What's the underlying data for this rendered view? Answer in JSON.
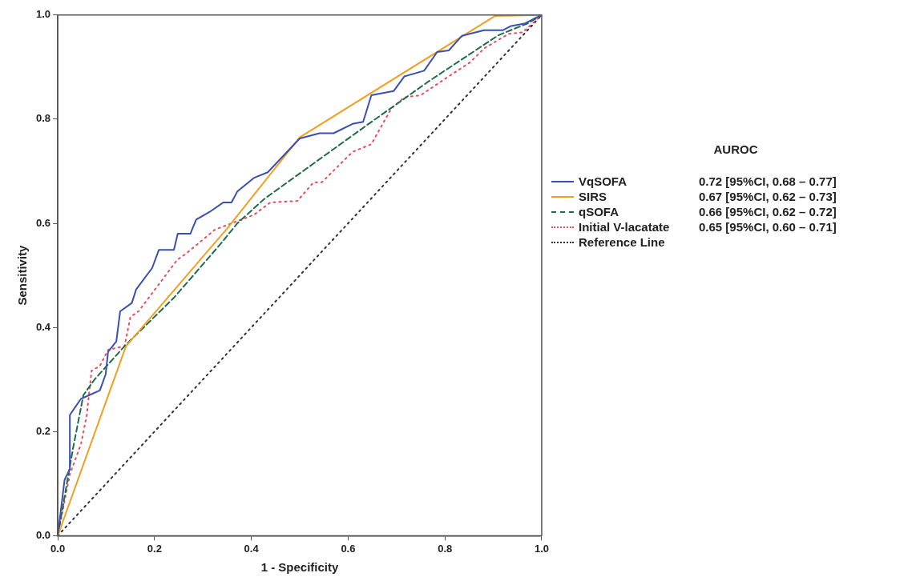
{
  "chart_data": {
    "type": "line",
    "xlabel": "1 - Specificity",
    "ylabel": "Sensitivity",
    "legend_title": "AUROC",
    "legend": "right",
    "grid": false,
    "marker": "none",
    "xlim": [
      0,
      1
    ],
    "ylim": [
      0,
      1
    ],
    "xticks": [
      {
        "value": 0,
        "label": "0.0"
      },
      {
        "value": 0.2,
        "label": "0.2"
      },
      {
        "value": 0.4,
        "label": "0.4"
      },
      {
        "value": 0.6,
        "label": "0.6"
      },
      {
        "value": 0.8,
        "label": "0.8"
      },
      {
        "value": 1,
        "label": "1.0"
      }
    ],
    "yticks": [
      {
        "value": 0,
        "label": "0.0"
      },
      {
        "value": 0.2,
        "label": "0.2"
      },
      {
        "value": 0.4,
        "label": "0.4"
      },
      {
        "value": 0.6,
        "label": "0.6"
      },
      {
        "value": 0.8,
        "label": "0.8"
      },
      {
        "value": 1,
        "label": "1.0"
      }
    ],
    "annotations": [
      "0.72 [95%CI, 0.68 – 0.77]",
      "0.67 [95%CI, 0.62 – 0.73]",
      "0.66 [95%CI, 0.62 – 0.72]",
      "0.65 [95%CI, 0.60 – 0.71]"
    ],
    "series": [
      {
        "name": "VqSOFA",
        "color": "#3a4fb0",
        "line_style": "solid",
        "x": [
          0,
          0.014,
          0.025,
          0.025,
          0.048,
          0.065,
          0.087,
          0.099,
          0.104,
          0.121,
          0.129,
          0.153,
          0.162,
          0.195,
          0.209,
          0.24,
          0.248,
          0.274,
          0.286,
          0.314,
          0.342,
          0.359,
          0.371,
          0.405,
          0.434,
          0.5,
          0.541,
          0.57,
          0.609,
          0.631,
          0.648,
          0.694,
          0.716,
          0.757,
          0.784,
          0.808,
          0.835,
          0.881,
          0.92,
          0.937,
          0.966,
          0.988,
          1
        ],
        "values": [
          0,
          0.107,
          0.128,
          0.232,
          0.263,
          0.27,
          0.279,
          0.31,
          0.353,
          0.373,
          0.431,
          0.447,
          0.473,
          0.514,
          0.549,
          0.549,
          0.58,
          0.58,
          0.607,
          0.622,
          0.64,
          0.64,
          0.661,
          0.687,
          0.698,
          0.763,
          0.773,
          0.773,
          0.791,
          0.795,
          0.846,
          0.854,
          0.882,
          0.893,
          0.929,
          0.932,
          0.96,
          0.971,
          0.971,
          0.979,
          0.984,
          0.995,
          1
        ]
      },
      {
        "name": "SIRS",
        "color": "#f0a020",
        "line_style": "solid",
        "x": [
          0,
          0.141,
          0.35,
          0.5,
          0.903,
          1
        ],
        "values": [
          0,
          0.364,
          0.59,
          0.765,
          0.998,
          1
        ]
      },
      {
        "name": "qSOFA",
        "color": "#1f6b4a",
        "line_style": "dashed",
        "x": [
          0,
          0.031,
          0.053,
          0.076,
          0.138,
          0.24,
          0.337,
          0.371,
          0.427,
          0.638,
          0.767,
          0.91,
          0.971,
          1
        ],
        "values": [
          0,
          0.165,
          0.27,
          0.3,
          0.364,
          0.457,
          0.561,
          0.6,
          0.647,
          0.788,
          0.873,
          0.961,
          0.984,
          1
        ]
      },
      {
        "name": "Initial V-lacatate",
        "color": "#e05060",
        "line_style": "dotted",
        "x": [
          0,
          0.025,
          0.048,
          0.06,
          0.07,
          0.087,
          0.104,
          0.138,
          0.15,
          0.167,
          0.218,
          0.247,
          0.264,
          0.325,
          0.405,
          0.439,
          0.495,
          0.529,
          0.546,
          0.609,
          0.648,
          0.689,
          0.716,
          0.75,
          0.801,
          0.852,
          0.881,
          0.932,
          0.961,
          1
        ],
        "values": [
          0,
          0.118,
          0.176,
          0.232,
          0.317,
          0.326,
          0.357,
          0.364,
          0.42,
          0.431,
          0.494,
          0.53,
          0.541,
          0.588,
          0.616,
          0.64,
          0.643,
          0.679,
          0.679,
          0.737,
          0.752,
          0.82,
          0.842,
          0.846,
          0.878,
          0.909,
          0.936,
          0.964,
          0.967,
          1
        ]
      },
      {
        "name": "Reference Line",
        "color": "#333333",
        "line_style": "dotted",
        "x": [
          0,
          1
        ],
        "values": [
          0,
          1
        ]
      }
    ]
  }
}
